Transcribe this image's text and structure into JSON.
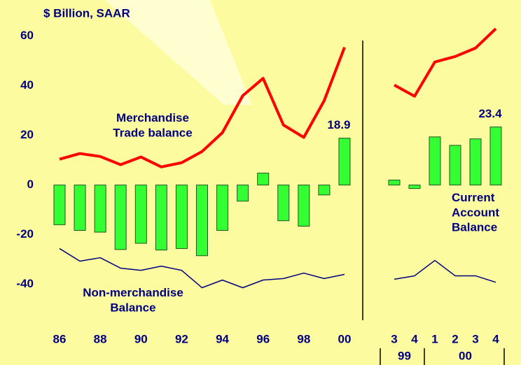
{
  "chart_data": {
    "type": "bar",
    "title": "$ Billion, SAAR",
    "categories": [
      "86",
      null,
      "88",
      null,
      "90",
      null,
      "92",
      null,
      "94",
      null,
      "96",
      null,
      "98",
      null,
      "00",
      "3",
      "4",
      "1",
      "2",
      "3",
      "4"
    ],
    "x_groups": [
      {
        "label": "99",
        "start": 15,
        "end": 16
      },
      {
        "label": "00",
        "start": 17,
        "end": 20
      }
    ],
    "axis_break": 15,
    "ylim": [
      -50,
      65
    ],
    "yticks": [
      -40,
      -20,
      0,
      20,
      40,
      60
    ],
    "series": [
      {
        "name": "Current\nAccount\nBalance",
        "type": "bar",
        "color": "#33ff33",
        "values": [
          -16,
          -18.3,
          -19,
          -26,
          -23.5,
          -26.2,
          -25.6,
          -28.5,
          -18.3,
          -6.5,
          4.8,
          -14.4,
          -16.6,
          -4,
          18.9,
          2,
          -1.4,
          19.4,
          16,
          18.6,
          23.4
        ],
        "value_labels": [
          null,
          null,
          null,
          null,
          null,
          null,
          null,
          null,
          null,
          null,
          null,
          null,
          null,
          null,
          "18.9",
          null,
          null,
          null,
          null,
          null,
          "23.4"
        ]
      },
      {
        "name": "Merchandise\nTrade balance",
        "type": "line",
        "color": "#ff0000",
        "values": [
          10.4,
          12.7,
          11.5,
          8.2,
          11.3,
          7.3,
          9,
          13.5,
          21.1,
          36,
          43,
          24.2,
          19.2,
          34,
          55.5,
          40.3,
          35.8,
          49.6,
          51.8,
          55.2,
          63
        ]
      },
      {
        "name": "Non-merchandise\nBalance",
        "type": "line",
        "color": "#000080",
        "values": [
          -25.6,
          -30.7,
          -29.3,
          -33.5,
          -34.4,
          -32.7,
          -34.4,
          -41.4,
          -38.3,
          -41.4,
          -38.3,
          -37.7,
          -35.5,
          -37.7,
          -36,
          -38,
          -36.6,
          -30.4,
          -36.6,
          -36.6,
          -39.2
        ]
      }
    ]
  }
}
